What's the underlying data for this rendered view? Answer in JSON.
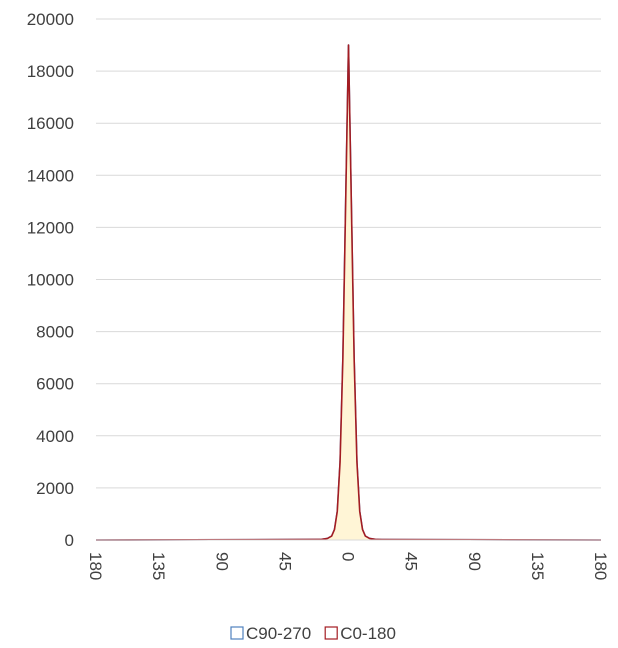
{
  "chart_data": {
    "type": "area",
    "title": "",
    "xlabel": "",
    "ylabel": "",
    "x_ticks": [
      "180",
      "135",
      "90",
      "45",
      "0",
      "45",
      "90",
      "135",
      "180"
    ],
    "x_tick_values": [
      -180,
      -135,
      -90,
      -45,
      0,
      45,
      90,
      135,
      180
    ],
    "xlim": [
      -180,
      180
    ],
    "ylim": [
      0,
      20000
    ],
    "y_ticks": [
      0,
      2000,
      4000,
      6000,
      8000,
      10000,
      12000,
      14000,
      16000,
      18000,
      20000
    ],
    "grid": "horizontal",
    "legend_position": "bottom",
    "series": [
      {
        "name": "C90-270",
        "color": "#4F81BD",
        "fill": "#FFFFFF",
        "x": [
          -180,
          -20,
          -15,
          -12,
          -10,
          -8,
          -6,
          -4,
          -2,
          0,
          2,
          4,
          6,
          8,
          10,
          12,
          15,
          20,
          180
        ],
        "values": [
          0,
          20,
          60,
          150,
          400,
          1100,
          3000,
          7000,
          13000,
          19000,
          13000,
          7000,
          3000,
          1100,
          400,
          150,
          60,
          20,
          0
        ]
      },
      {
        "name": "C0-180",
        "color": "#A31C22",
        "fill": "#FFF5D6",
        "x": [
          -180,
          -20,
          -15,
          -12,
          -10,
          -8,
          -6,
          -4,
          -2,
          0,
          2,
          4,
          6,
          8,
          10,
          12,
          15,
          20,
          180
        ],
        "values": [
          0,
          20,
          60,
          150,
          400,
          1100,
          3000,
          7000,
          13000,
          19000,
          13000,
          7000,
          3000,
          1100,
          400,
          150,
          60,
          20,
          0
        ]
      }
    ]
  }
}
